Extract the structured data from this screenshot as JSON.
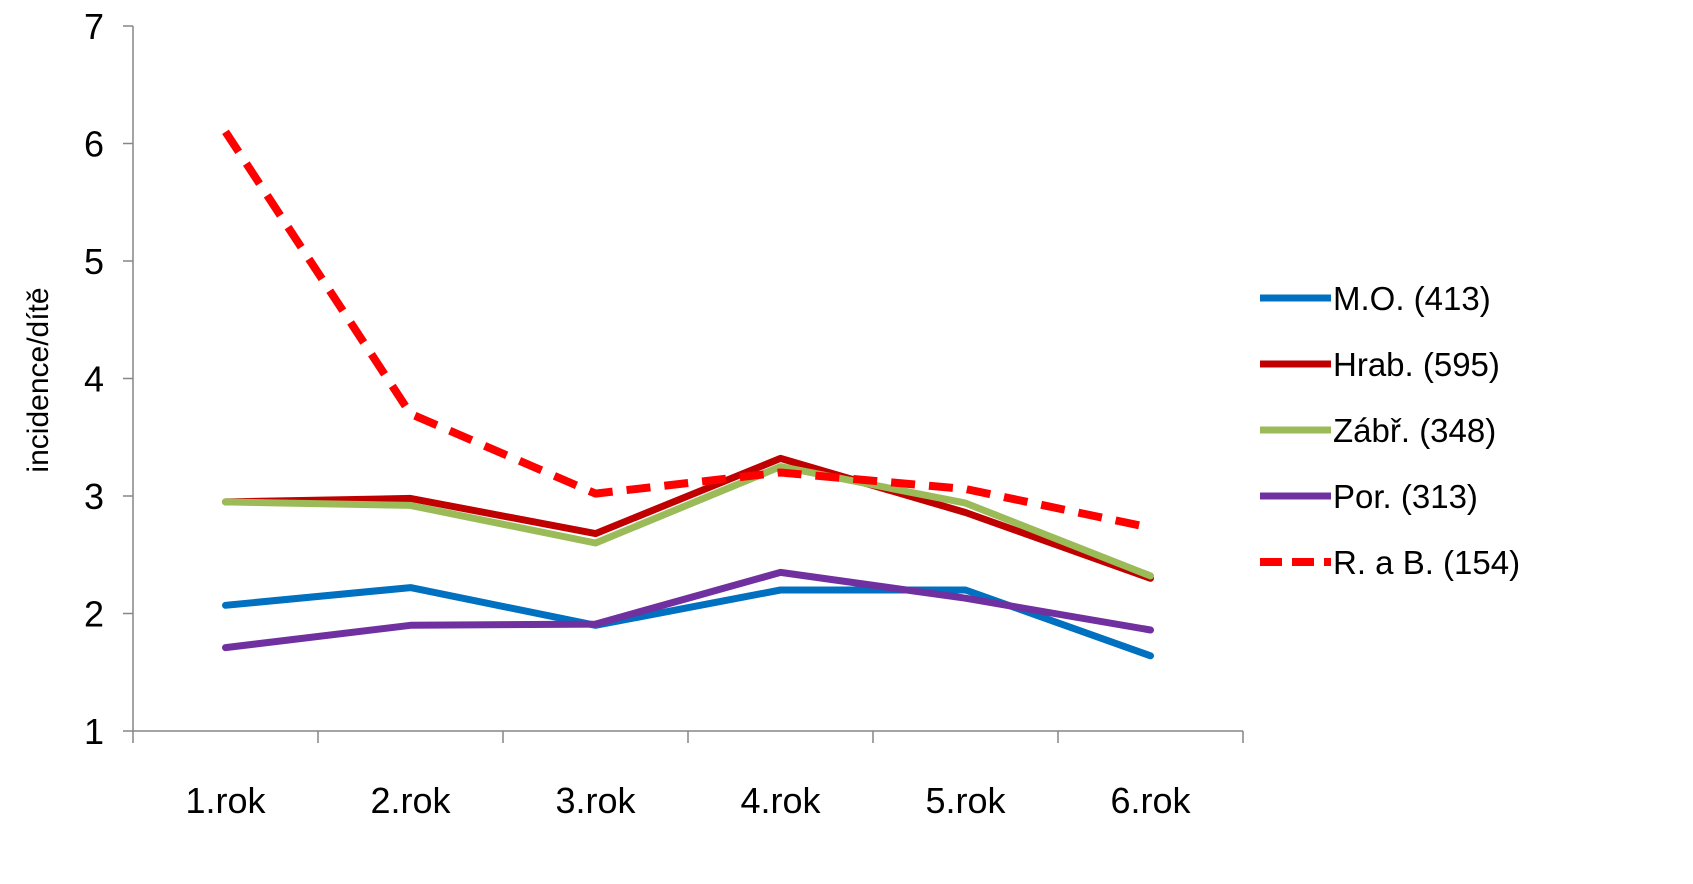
{
  "chart_data": {
    "type": "line",
    "title": "",
    "xlabel": "",
    "ylabel": "incidence/dítě",
    "categories": [
      "1.rok",
      "2.rok",
      "3.rok",
      "4.rok",
      "5.rok",
      "6.rok"
    ],
    "ylim": [
      1,
      7
    ],
    "yticks": [
      1,
      2,
      3,
      4,
      5,
      6,
      7
    ],
    "grid": false,
    "legend_position": "right",
    "series": [
      {
        "name": "M.O.  (413)",
        "color": "#0070C0",
        "dashed": false,
        "values": [
          2.07,
          2.22,
          1.9,
          2.2,
          2.2,
          1.64
        ]
      },
      {
        "name": "Hrab.  (595)",
        "color": "#C00000",
        "dashed": false,
        "values": [
          2.95,
          2.98,
          2.68,
          3.32,
          2.86,
          2.3
        ]
      },
      {
        "name": "Zábř.  (348)",
        "color": "#9BBB59",
        "dashed": false,
        "values": [
          2.95,
          2.92,
          2.6,
          3.25,
          2.94,
          2.32
        ]
      },
      {
        "name": "Por.  (313)",
        "color": "#7030A0",
        "dashed": false,
        "values": [
          1.71,
          1.9,
          1.91,
          2.35,
          2.13,
          1.86
        ]
      },
      {
        "name": "R. a B.  (154)",
        "color": "#FF0000",
        "dashed": true,
        "values": [
          6.1,
          3.7,
          3.02,
          3.2,
          3.06,
          2.73
        ]
      }
    ]
  }
}
